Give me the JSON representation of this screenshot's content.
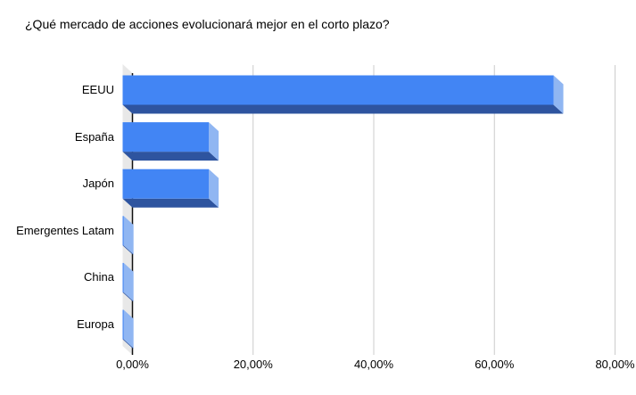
{
  "chart_data": {
    "type": "bar",
    "orientation": "horizontal",
    "style": "3d",
    "title": "¿Qué mercado de acciones evolucionará mejor en el corto plazo?",
    "categories": [
      "EEUU",
      "España",
      "Japón",
      "Emergentes Latam",
      "China",
      "Europa"
    ],
    "values": [
      71.43,
      14.29,
      14.29,
      0,
      0,
      0
    ],
    "value_unit": "%",
    "x_ticks": [
      "0,00%",
      "20,00%",
      "40,00%",
      "60,00%",
      "80,00%"
    ],
    "x_tick_values": [
      0,
      20,
      40,
      60,
      80
    ],
    "xlim": [
      0,
      80
    ],
    "grid": true,
    "legend": "none",
    "colors": {
      "bar_face": "#4285f4",
      "bar_bottom": "#2e549f",
      "bar_side": "#90b6f2",
      "wall": "#e8e8e8",
      "gridline": "#cccccc",
      "axis_line": "#111111",
      "text": "#000000",
      "background": "#ffffff"
    }
  }
}
